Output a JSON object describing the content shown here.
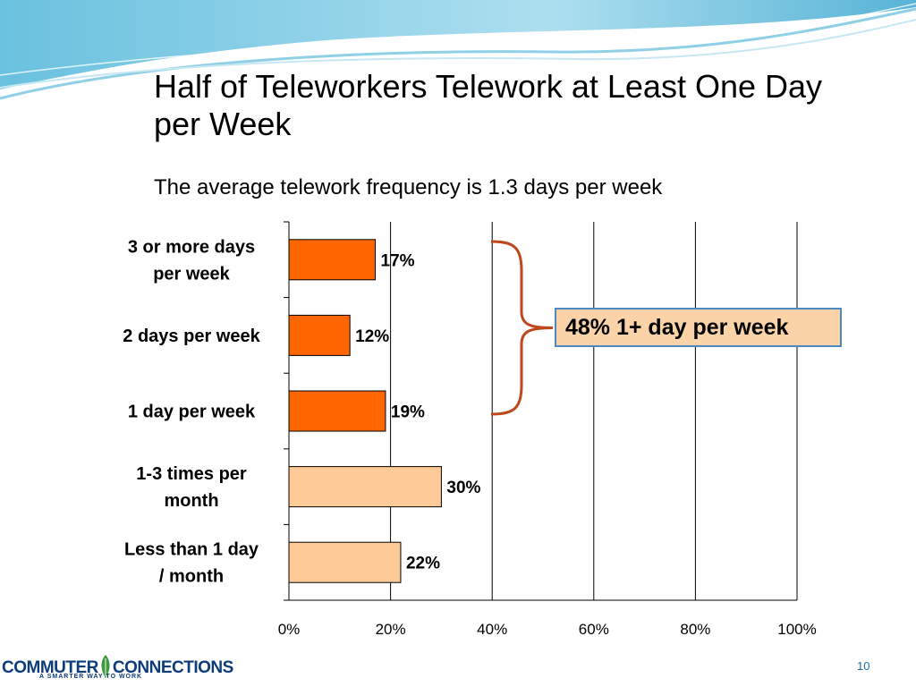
{
  "slide": {
    "title": "Half of Teleworkers Telework at Least One Day per Week",
    "subtitle": "The average telework frequency is 1.3 days per week",
    "callout": "48% 1+ day per week",
    "page_number": "10"
  },
  "logo": {
    "left_word": "COMMUTER",
    "right_word": "CONNECTIONS",
    "tagline": "A SMARTER WAY TO WORK"
  },
  "colors": {
    "dark_bar": "#ff6600",
    "light_bar": "#fdca98",
    "brace": "#c0461b",
    "callout_fill": "#fbd3a8",
    "callout_border": "#4a89c4"
  },
  "chart_data": {
    "type": "bar",
    "orientation": "horizontal",
    "categories": [
      [
        "3 or more days",
        "per week"
      ],
      [
        "2 days per week"
      ],
      [
        "1 day per week"
      ],
      [
        "1-3 times per",
        "month"
      ],
      [
        "Less than 1 day",
        "/ month"
      ]
    ],
    "values": [
      17,
      12,
      19,
      30,
      22
    ],
    "value_labels": [
      "17%",
      "12%",
      "19%",
      "30%",
      "22%"
    ],
    "bar_colors": [
      "#ff6600",
      "#ff6600",
      "#ff6600",
      "#fdca98",
      "#fdca98"
    ],
    "xlim": [
      0,
      100
    ],
    "xticks": [
      0,
      20,
      40,
      60,
      80,
      100
    ],
    "xtick_labels": [
      "0%",
      "20%",
      "40%",
      "60%",
      "80%",
      "100%"
    ],
    "grid": true,
    "legend": "none"
  }
}
